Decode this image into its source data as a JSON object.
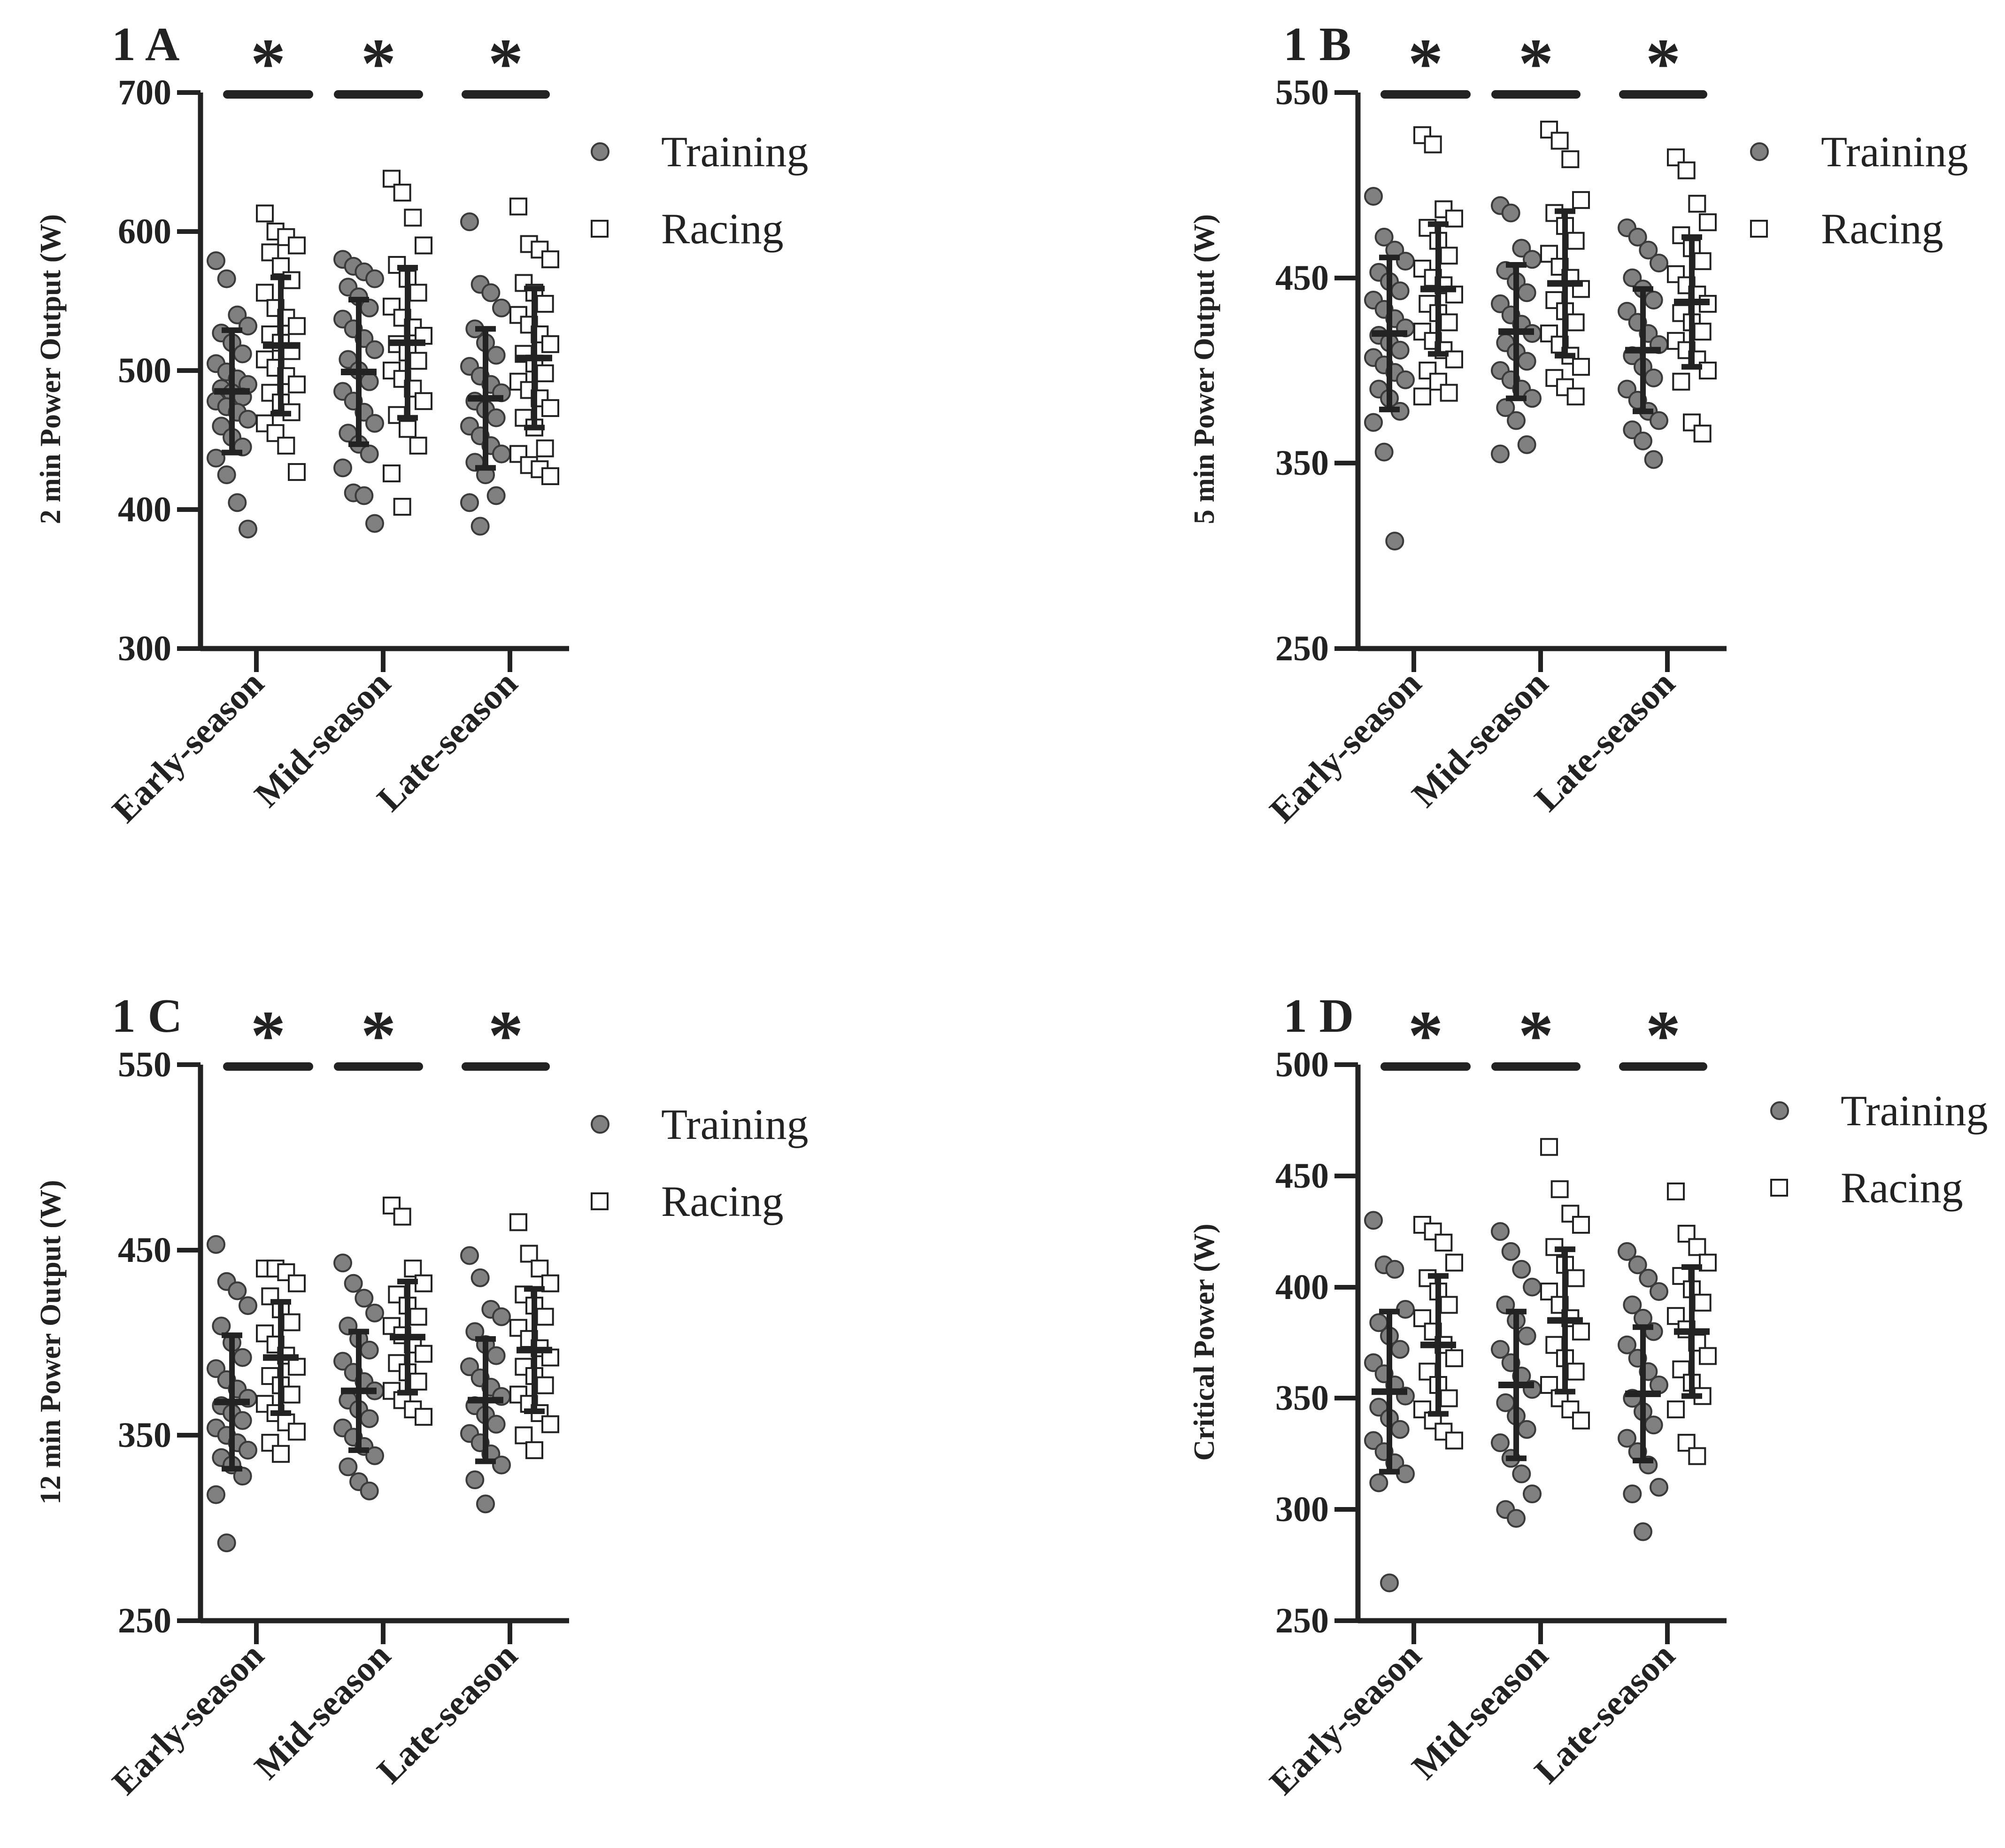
{
  "figure": {
    "colors": {
      "axis": "#222222",
      "training_fill": "#808080",
      "training_stroke": "#3a3a3a",
      "racing_fill": "#ffffff",
      "racing_stroke": "#222222"
    }
  },
  "chart_data": [
    {
      "panel": "1 A",
      "type": "scatter",
      "ylabel": "2 min Power Output (W)",
      "ylim": [
        300,
        700
      ],
      "yticks": [
        300,
        400,
        500,
        600,
        700
      ],
      "categories": [
        "Early-season",
        "Mid-season",
        "Late-season"
      ],
      "legend": [
        "Training",
        "Racing"
      ],
      "significance": [
        "*",
        "*",
        "*"
      ],
      "series": [
        {
          "name": "Training",
          "marker": "circle",
          "mean": [
            485,
            499,
            480
          ],
          "sd": [
            44,
            52,
            50
          ],
          "points": [
            [
              579,
              566,
              540,
              532,
              527,
              520,
              512,
              505,
              499,
              494,
              490,
              487,
              484,
              481,
              478,
              474,
              470,
              465,
              460,
              452,
              445,
              437,
              425,
              405,
              386
            ],
            [
              580,
              575,
              571,
              566,
              560,
              553,
              545,
              537,
              530,
              523,
              515,
              508,
              500,
              492,
              485,
              478,
              470,
              462,
              455,
              447,
              440,
              430,
              412,
              410,
              390
            ],
            [
              607,
              562,
              556,
              545,
              530,
              520,
              511,
              503,
              496,
              490,
              484,
              478,
              472,
              466,
              460,
              453,
              446,
              440,
              434,
              425,
              410,
              405,
              388
            ]
          ]
        },
        {
          "name": "Racing",
          "marker": "square",
          "mean": [
            518,
            520,
            509
          ],
          "sd": [
            49,
            54,
            50
          ],
          "points": [
            [
              613,
              600,
              596,
              590,
              585,
              575,
              565,
              556,
              545,
              538,
              532,
              526,
              520,
              514,
              508,
              502,
              496,
              490,
              484,
              477,
              470,
              462,
              455,
              446,
              427
            ],
            [
              638,
              628,
              610,
              590,
              576,
              566,
              556,
              546,
              538,
              531,
              525,
              519,
              513,
              507,
              500,
              494,
              487,
              478,
              468,
              458,
              446,
              426,
              402
            ],
            [
              618,
              591,
              587,
              580,
              563,
              556,
              548,
              540,
              533,
              526,
              519,
              512,
              505,
              498,
              492,
              486,
              480,
              473,
              466,
              459,
              444,
              440,
              432,
              429,
              424
            ]
          ]
        }
      ]
    },
    {
      "panel": "1 B",
      "type": "scatter",
      "ylabel": "5 min Power Output (W)",
      "ylim": [
        250,
        550
      ],
      "yticks": [
        250,
        350,
        450,
        550
      ],
      "categories": [
        "Early-season",
        "Mid-season",
        "Late-season"
      ],
      "legend": [
        "Training",
        "Racing"
      ],
      "significance": [
        "*",
        "*",
        "*"
      ],
      "series": [
        {
          "name": "Training",
          "marker": "circle",
          "mean": [
            420,
            421,
            411
          ],
          "sd": [
            41,
            36,
            33
          ],
          "points": [
            [
              494,
              472,
              465,
              459,
              453,
              448,
              443,
              438,
              433,
              428,
              423,
              419,
              415,
              411,
              407,
              403,
              399,
              395,
              390,
              385,
              378,
              372,
              356,
              308
            ],
            [
              489,
              485,
              466,
              460,
              454,
              448,
              442,
              436,
              430,
              425,
              420,
              415,
              410,
              405,
              400,
              395,
              390,
              385,
              380,
              373,
              360,
              355
            ],
            [
              477,
              472,
              465,
              458,
              450,
              444,
              438,
              432,
              426,
              420,
              414,
              408,
              402,
              396,
              390,
              384,
              378,
              373,
              368,
              362,
              352
            ]
          ]
        },
        {
          "name": "Racing",
          "marker": "square",
          "mean": [
            444,
            447,
            437
          ],
          "sd": [
            35,
            39,
            35
          ],
          "points": [
            [
              527,
              522,
              487,
              482,
              477,
              470,
              462,
              455,
              450,
              446,
              441,
              436,
              431,
              426,
              421,
              416,
              411,
              406,
              400,
              394,
              388,
              386
            ],
            [
              530,
              524,
              514,
              492,
              485,
              478,
              470,
              463,
              456,
              450,
              444,
              438,
              432,
              426,
              420,
              414,
              408,
              402,
              396,
              391,
              386
            ],
            [
              515,
              508,
              490,
              480,
              473,
              466,
              459,
              452,
              446,
              441,
              436,
              431,
              426,
              421,
              416,
              411,
              406,
              400,
              394,
              372,
              366
            ]
          ]
        }
      ]
    },
    {
      "panel": "1 C",
      "type": "scatter",
      "ylabel": "12 min Power Output (W)",
      "ylim": [
        250,
        550
      ],
      "yticks": [
        250,
        350,
        450,
        550
      ],
      "categories": [
        "Early-season",
        "Mid-season",
        "Late-season"
      ],
      "legend": [
        "Training",
        "Racing"
      ],
      "significance": [
        "*",
        "*",
        "*"
      ],
      "series": [
        {
          "name": "Training",
          "marker": "circle",
          "mean": [
            368,
            374,
            369
          ],
          "sd": [
            36,
            32,
            33
          ],
          "points": [
            [
              453,
              433,
              428,
              420,
              409,
              400,
              392,
              386,
              380,
              375,
              370,
              366,
              362,
              358,
              354,
              350,
              346,
              342,
              338,
              334,
              328,
              318,
              292
            ],
            [
              443,
              432,
              424,
              416,
              409,
              402,
              396,
              390,
              384,
              379,
              374,
              369,
              364,
              359,
              354,
              349,
              344,
              339,
              333,
              325,
              320
            ],
            [
              447,
              435,
              418,
              414,
              406,
              399,
              393,
              387,
              381,
              376,
              371,
              366,
              361,
              356,
              351,
              346,
              340,
              334,
              326,
              313
            ]
          ]
        },
        {
          "name": "Racing",
          "marker": "square",
          "mean": [
            392,
            403,
            396
          ],
          "sd": [
            30,
            30,
            33
          ],
          "points": [
            [
              440,
              440,
              438,
              432,
              425,
              418,
              411,
              405,
              399,
              393,
              387,
              382,
              377,
              372,
              367,
              362,
              357,
              352,
              346,
              340
            ],
            [
              474,
              468,
              440,
              432,
              426,
              420,
              414,
              409,
              404,
              399,
              394,
              389,
              384,
              379,
              374,
              369,
              364,
              360
            ],
            [
              465,
              448,
              440,
              432,
              426,
              420,
              414,
              408,
              402,
              397,
              392,
              387,
              382,
              377,
              372,
              367,
              362,
              356,
              350,
              342
            ]
          ]
        }
      ]
    },
    {
      "panel": "1 D",
      "type": "scatter",
      "ylabel": "Critical Power (W)",
      "ylim": [
        250,
        500
      ],
      "yticks": [
        250,
        300,
        350,
        400,
        450,
        500
      ],
      "categories": [
        "Early-season",
        "Mid-season",
        "Late-season"
      ],
      "legend": [
        "Training",
        "Racing"
      ],
      "significance": [
        "*",
        "*",
        "*"
      ],
      "series": [
        {
          "name": "Training",
          "marker": "circle",
          "mean": [
            353,
            356,
            352
          ],
          "sd": [
            36,
            33,
            30
          ],
          "points": [
            [
              430,
              410,
              408,
              390,
              384,
              378,
              372,
              366,
              361,
              356,
              351,
              346,
              341,
              336,
              331,
              326,
              321,
              316,
              312,
              267
            ],
            [
              425,
              416,
              408,
              400,
              392,
              385,
              378,
              372,
              366,
              360,
              354,
              348,
              342,
              336,
              330,
              323,
              316,
              307,
              300,
              296
            ],
            [
              416,
              410,
              404,
              398,
              392,
              386,
              380,
              374,
              368,
              362,
              356,
              350,
              344,
              338,
              332,
              326,
              320,
              310,
              307,
              290
            ]
          ]
        },
        {
          "name": "Racing",
          "marker": "square",
          "mean": [
            374,
            385,
            380
          ],
          "sd": [
            31,
            32,
            29
          ],
          "points": [
            [
              428,
              425,
              420,
              411,
              404,
              398,
              392,
              386,
              380,
              374,
              368,
              362,
              356,
              350,
              345,
              340,
              335,
              331
            ],
            [
              463,
              444,
              433,
              428,
              418,
              410,
              404,
              398,
              392,
              386,
              380,
              374,
              368,
              362,
              356,
              350,
              345,
              340
            ],
            [
              443,
              424,
              418,
              411,
              405,
              399,
              393,
              387,
              381,
              375,
              369,
              363,
              357,
              351,
              345,
              330,
              324
            ]
          ]
        }
      ]
    }
  ]
}
